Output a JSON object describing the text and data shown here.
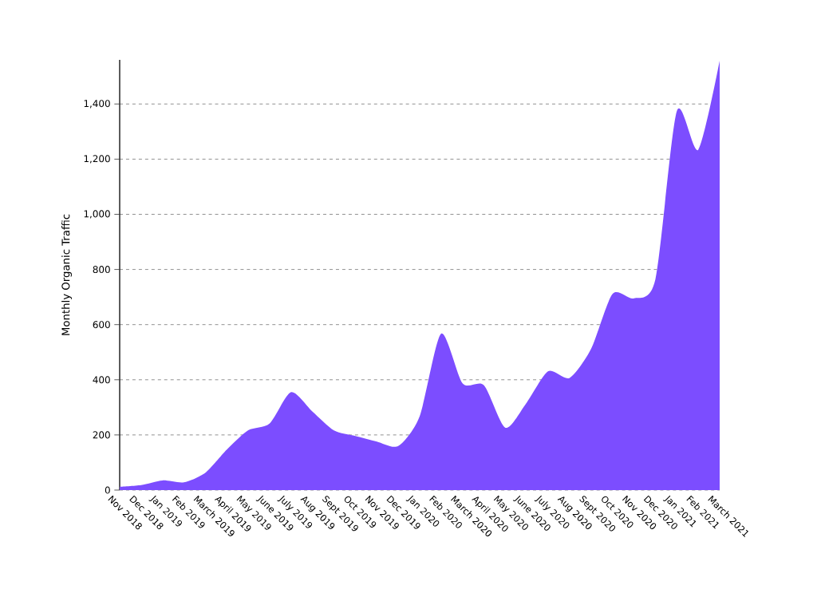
{
  "chart_data": {
    "type": "area",
    "ylabel": "Monthly Organic Traffic",
    "categories": [
      "Nov 2018",
      "Dec 2018",
      "Jan 2019",
      "Feb 2019",
      "March 2019",
      "April 2019",
      "May 2019",
      "June 2019",
      "July 2019",
      "Aug 2019",
      "Sept 2019",
      "Oct 2019",
      "Nov 2019",
      "Dec 2019",
      "Jan 2020",
      "Feb 2020",
      "March 2020",
      "April 2020",
      "May 2020",
      "June 2020",
      "July 2020",
      "Aug 2020",
      "Sept 2020",
      "Oct 2020",
      "Nov 2020",
      "Dec 2020",
      "Jan 2021",
      "Feb 2021",
      "March 2021"
    ],
    "values": [
      12,
      18,
      35,
      28,
      63,
      147,
      217,
      242,
      355,
      284,
      216,
      196,
      176,
      160,
      268,
      567,
      387,
      380,
      226,
      318,
      431,
      407,
      512,
      711,
      695,
      764,
      1374,
      1234,
      1557
    ],
    "color": "#7c4dff",
    "ylim": [
      0,
      1560
    ],
    "yticks": [
      0,
      200,
      400,
      600,
      800,
      {
        "value": 1000,
        "label": "1,000"
      },
      {
        "value": 1200,
        "label": "1,200"
      },
      {
        "value": 1400,
        "label": "1,400"
      }
    ],
    "grid": "y"
  }
}
